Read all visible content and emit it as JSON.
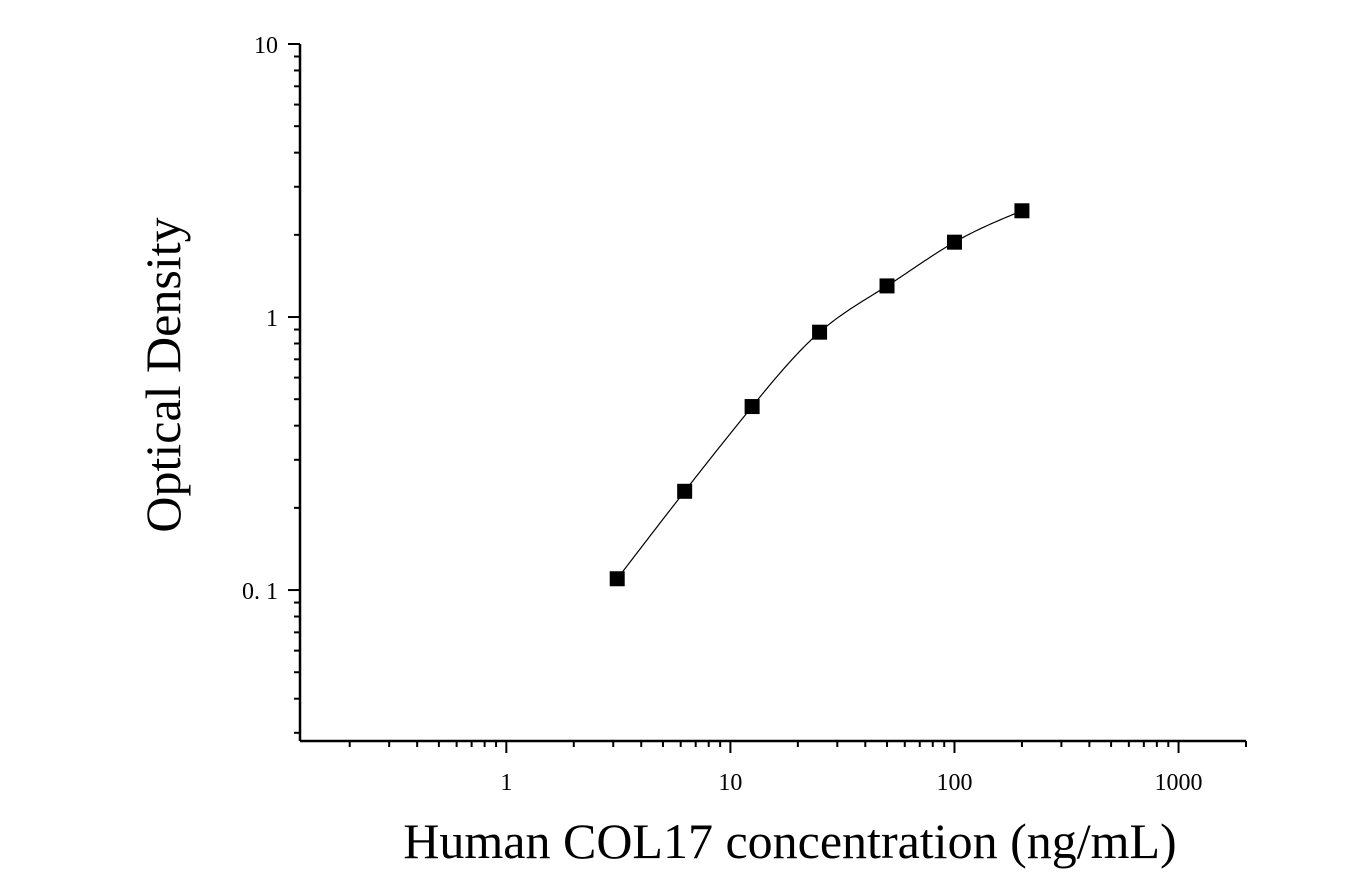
{
  "chart_data": {
    "type": "scatter",
    "title": "",
    "xlabel": "Human COL17 concentration (ng/mL)",
    "ylabel": "Optical Density",
    "x_scale": "log",
    "y_scale": "log",
    "xlim": [
      0.12,
      2000
    ],
    "ylim": [
      0.028,
      10
    ],
    "x_tick_labels": [
      "1",
      "10",
      "100",
      "1000"
    ],
    "x_tick_values": [
      1,
      10,
      100,
      1000
    ],
    "y_tick_labels": [
      "0. 1",
      "1",
      "10"
    ],
    "y_tick_values": [
      0.1,
      1,
      10
    ],
    "grid": false,
    "series": [
      {
        "marker": "square",
        "color": "#000000",
        "x": [
          3.125,
          6.25,
          12.5,
          25,
          50,
          100,
          200
        ],
        "y": [
          0.11,
          0.23,
          0.47,
          0.88,
          1.3,
          1.88,
          2.45
        ]
      }
    ],
    "fit_curve": {
      "color": "#000000",
      "x_range": [
        3.125,
        200
      ]
    }
  }
}
